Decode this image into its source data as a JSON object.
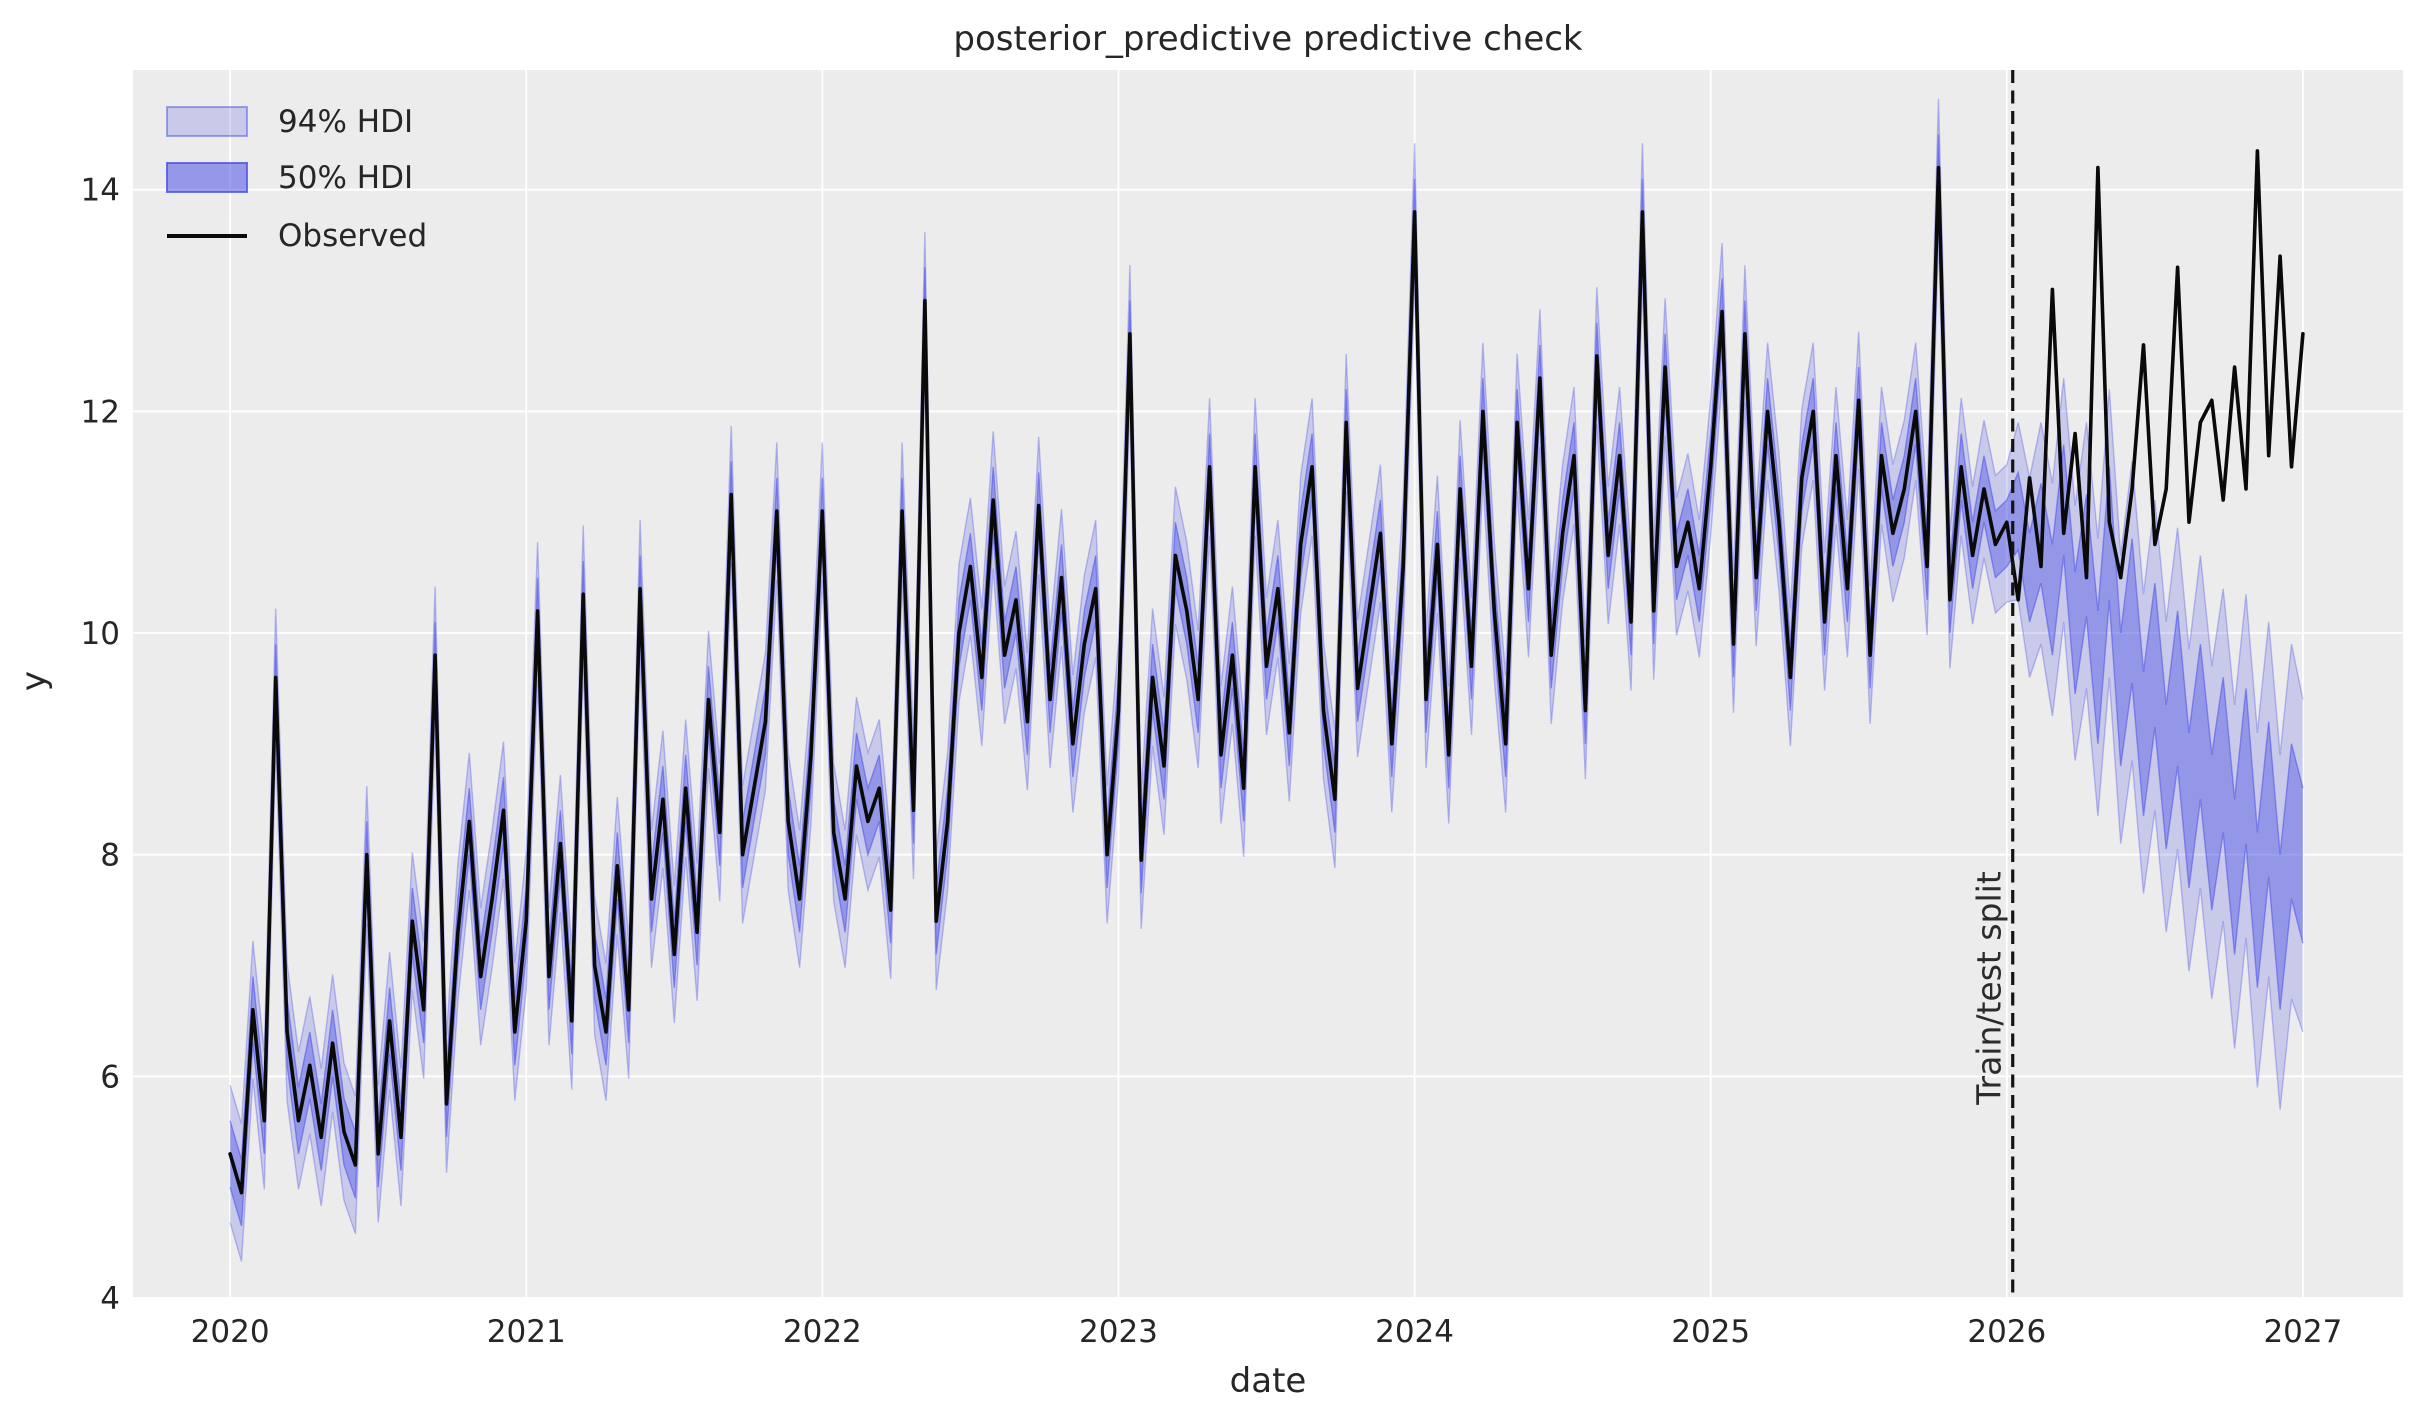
{
  "annotation": {
    "label": "Train/test split",
    "x": 2026.02
  },
  "legend": {
    "items": [
      {
        "label": "94% HDI",
        "type": "patch",
        "fill": "rgba(76,81,229,0.22)",
        "stroke": "rgba(76,81,229,0.50)"
      },
      {
        "label": "50% HDI",
        "type": "patch",
        "fill": "rgba(76,81,229,0.54)",
        "stroke": "rgba(76,81,229,0.80)"
      },
      {
        "label": "Observed",
        "type": "line",
        "color": "#0a0a0a"
      }
    ]
  },
  "colors": {
    "plot_background": "#ececec",
    "gridline": "#ffffff",
    "hdi94_fill": "rgba(76,81,229,0.22)",
    "hdi94_edge": "rgba(76,81,229,0.35)",
    "hdi50_fill": "rgba(76,81,229,0.42)",
    "hdi50_edge": "rgba(76,81,229,0.55)",
    "observed_line": "#0a0a0a",
    "split_line": "#141414",
    "text": "#262626"
  },
  "chart_data": {
    "type": "line",
    "title": "posterior_predictive predictive check",
    "xlabel": "date",
    "ylabel": "y",
    "x_ticks": [
      2020,
      2021,
      2022,
      2023,
      2024,
      2025,
      2026,
      2027
    ],
    "y_ticks": [
      4,
      6,
      8,
      10,
      12,
      14
    ],
    "xlim": [
      2019.672,
      2027.338
    ],
    "ylim": [
      4,
      15.08
    ],
    "grid": true,
    "legend_position": "upper left",
    "x_start": 2020.0,
    "x_step": 0.0384615,
    "observed": [
      5.3,
      4.95,
      6.6,
      5.6,
      9.6,
      6.4,
      5.6,
      6.1,
      5.45,
      6.3,
      5.5,
      5.2,
      8.0,
      5.3,
      6.5,
      5.45,
      7.4,
      6.6,
      9.8,
      5.75,
      7.3,
      8.3,
      6.9,
      7.6,
      8.4,
      6.4,
      7.4,
      10.2,
      6.9,
      8.1,
      6.5,
      10.35,
      7.0,
      6.4,
      7.9,
      6.6,
      10.4,
      7.6,
      8.5,
      7.1,
      8.6,
      7.3,
      9.4,
      8.2,
      11.25,
      8.0,
      8.6,
      9.2,
      11.1,
      8.3,
      7.6,
      8.9,
      11.1,
      8.2,
      7.6,
      8.8,
      8.3,
      8.6,
      7.5,
      11.1,
      8.4,
      13.0,
      7.4,
      8.3,
      10.0,
      10.6,
      9.6,
      11.2,
      9.8,
      10.3,
      9.2,
      11.15,
      9.4,
      10.5,
      9.0,
      9.9,
      10.4,
      8.0,
      9.3,
      12.7,
      7.95,
      9.6,
      8.8,
      10.7,
      10.2,
      9.4,
      11.5,
      8.9,
      9.8,
      8.6,
      11.5,
      9.7,
      10.4,
      9.1,
      10.8,
      11.5,
      9.3,
      8.5,
      11.9,
      9.5,
      10.2,
      10.9,
      9.0,
      10.6,
      13.8,
      9.4,
      10.8,
      8.9,
      11.3,
      9.7,
      12.0,
      10.2,
      9.0,
      11.9,
      10.4,
      12.3,
      9.8,
      10.9,
      11.6,
      9.3,
      12.5,
      10.7,
      11.6,
      10.1,
      13.8,
      10.2,
      12.4,
      10.6,
      11.0,
      10.4,
      11.5,
      12.9,
      9.9,
      12.7,
      10.5,
      12.0,
      11.0,
      9.6,
      11.4,
      12.0,
      10.1,
      11.6,
      10.4,
      12.1,
      9.8,
      11.6,
      10.9,
      11.3,
      12.0,
      10.6,
      14.2,
      10.3,
      11.5,
      10.7,
      11.3,
      10.8,
      11.0,
      10.3,
      11.4,
      10.6,
      13.1,
      10.9,
      11.8,
      10.5,
      14.2,
      11.0,
      10.5,
      11.3,
      12.6,
      10.8,
      11.3,
      13.3,
      11.0,
      11.9,
      12.1,
      11.2,
      12.4,
      11.3,
      14.35,
      11.6,
      13.4,
      11.5,
      12.7
    ],
    "hdi": {
      "test_start_index": 156,
      "train_halfwidth_50": 0.3,
      "train_halfwidth_94": 0.62,
      "test_center": [
        10.9,
        11.1,
        10.5,
        10.9,
        10.3,
        11.2,
        10.0,
        10.7,
        9.6,
        10.9,
        9.4,
        10.2,
        9.0,
        9.8,
        8.7,
        9.5,
        8.4,
        9.2,
        8.2,
        8.9,
        7.8,
        8.8,
        7.5,
        8.5,
        7.3,
        8.3,
        7.9
      ],
      "test_halfwidth_50": [
        0.3,
        0.35,
        0.4,
        0.45,
        0.5,
        0.5,
        0.55,
        0.55,
        0.6,
        0.6,
        0.6,
        0.65,
        0.65,
        0.65,
        0.65,
        0.7,
        0.7,
        0.7,
        0.7,
        0.7,
        0.7,
        0.7,
        0.7,
        0.7,
        0.7,
        0.7,
        0.7
      ],
      "test_halfwidth_94": [
        0.62,
        0.8,
        0.9,
        1.0,
        1.05,
        1.1,
        1.15,
        1.2,
        1.25,
        1.3,
        1.3,
        1.35,
        1.35,
        1.4,
        1.4,
        1.45,
        1.45,
        1.5,
        1.5,
        1.5,
        1.55,
        1.55,
        1.6,
        1.6,
        1.6,
        1.6,
        1.5
      ]
    }
  }
}
